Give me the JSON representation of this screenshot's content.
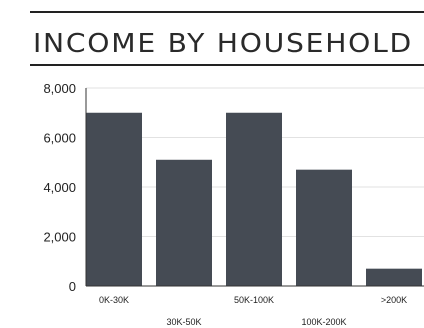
{
  "chart_data": {
    "type": "bar",
    "title": "INCOME BY HOUSEHOLD",
    "categories": [
      "0K-30K",
      "30K-50K",
      "50K-100K",
      "100K-200K",
      ">200K"
    ],
    "values": [
      7000,
      5100,
      7000,
      4700,
      700
    ],
    "y_ticks": [
      "0",
      "2,000",
      "4,000",
      "6,000",
      "8,000"
    ],
    "ylim": [
      0,
      8000
    ],
    "grid": true,
    "bar_color": "#454b54"
  }
}
